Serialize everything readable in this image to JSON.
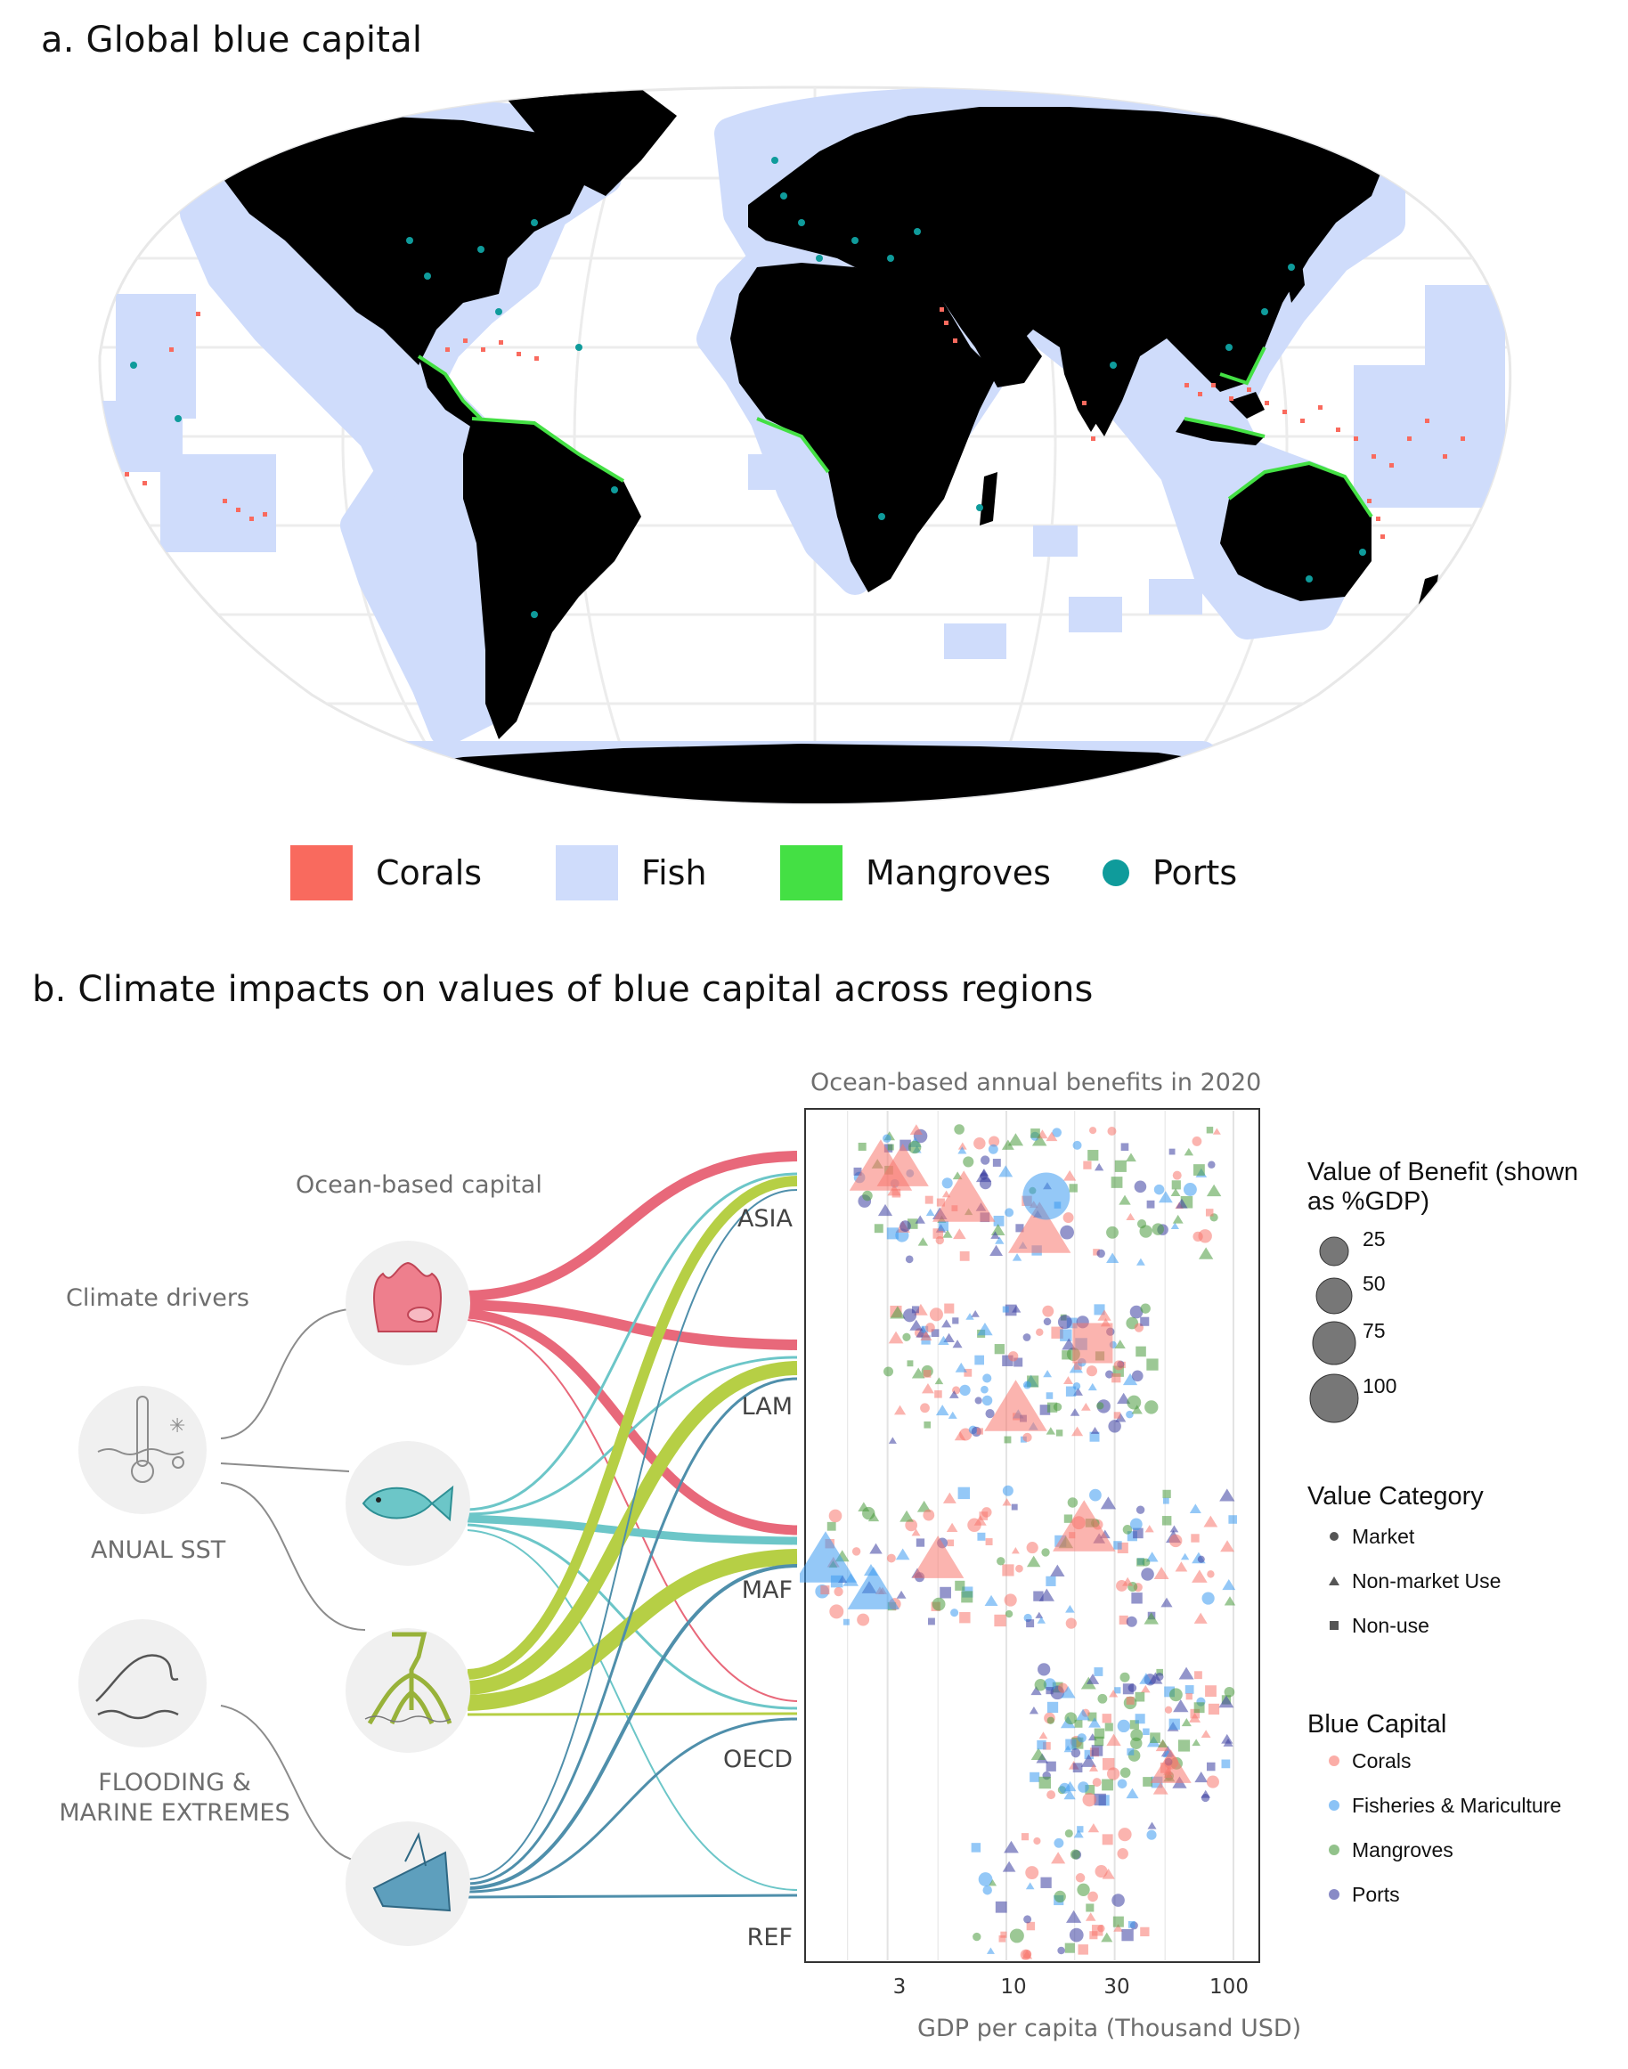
{
  "panel_a": {
    "title": "a. Global blue capital",
    "legend": [
      {
        "label": "Corals",
        "color": "#f96a5e",
        "shape": "square"
      },
      {
        "label": "Fish",
        "color": "#cfdcfb",
        "shape": "square"
      },
      {
        "label": "Mangroves",
        "color": "#44e044",
        "shape": "square"
      },
      {
        "label": "Ports",
        "color": "#0f9b9b",
        "shape": "circle"
      }
    ]
  },
  "panel_b": {
    "title": "b. Climate impacts on values of blue capital across regions",
    "climate_drivers_label": "Climate drivers",
    "ocean_capital_label": "Ocean-based capital",
    "drivers": [
      {
        "label": "ANUAL SST",
        "icon": "thermometer-icon"
      },
      {
        "label_lines": [
          "FLOODING &",
          "MARINE EXTREMES"
        ],
        "icon": "wave-icon"
      }
    ],
    "capitals": [
      {
        "icon": "coral-icon",
        "color": "#e8687a"
      },
      {
        "icon": "fish-icon",
        "color": "#6cc6c8"
      },
      {
        "icon": "mangrove-icon",
        "color": "#b6cf45"
      },
      {
        "icon": "port-icon",
        "color": "#4f8fab"
      }
    ],
    "regions": [
      "ASIA",
      "LAM",
      "MAF",
      "OECD",
      "REF"
    ],
    "colors": {
      "Corals": "#f8766d",
      "Fisheries & Mariculture": "#3d9bf0",
      "Mangroves": "#4a9a3e",
      "Ports": "#3b3ea0"
    }
  },
  "chart_data": {
    "type": "scatter",
    "title": "Ocean-based annual benefits in 2020",
    "xlabel": "GDP per capita (Thousand USD)",
    "x_scale": "log",
    "xlim": [
      1.3,
      130
    ],
    "x_ticks": [
      "3",
      "10",
      "30",
      "100"
    ],
    "y_categories": [
      "ASIA",
      "LAM",
      "MAF",
      "OECD",
      "REF"
    ],
    "legend": {
      "size_title": "Value of Benefit (shown as %GDP)",
      "size_levels": [
        "25",
        "50",
        "75",
        "100"
      ],
      "shape_title": "Value Category",
      "shapes": [
        "Market",
        "Non-market Use",
        "Non-use"
      ],
      "color_title": "Blue Capital",
      "colors": [
        "Corals",
        "Fisheries & Mariculture",
        "Mangroves",
        "Ports"
      ]
    },
    "region_gdp_ranges": {
      "ASIA": [
        2.2,
        85
      ],
      "LAM": [
        3,
        45
      ],
      "MAF": [
        1.5,
        100
      ],
      "OECD": [
        13,
        100
      ],
      "REF": [
        7,
        45
      ]
    },
    "large_points": [
      {
        "region": "ASIA",
        "x": 2.8,
        "size": 100,
        "capital": "Corals",
        "category": "Non-market Use"
      },
      {
        "region": "ASIA",
        "x": 6.5,
        "size": 100,
        "capital": "Corals",
        "category": "Non-market Use"
      },
      {
        "region": "ASIA",
        "x": 14,
        "size": 100,
        "capital": "Corals",
        "category": "Non-market Use"
      },
      {
        "region": "ASIA",
        "x": 3.5,
        "size": 75,
        "capital": "Corals",
        "category": "Non-market Use"
      },
      {
        "region": "ASIA",
        "x": 15,
        "size": 75,
        "capital": "Fisheries & Mariculture",
        "category": "Market"
      },
      {
        "region": "LAM",
        "x": 11,
        "size": 100,
        "capital": "Corals",
        "category": "Non-market Use"
      },
      {
        "region": "LAM",
        "x": 24,
        "size": 75,
        "capital": "Corals",
        "category": "Non-use"
      },
      {
        "region": "MAF",
        "x": 1.6,
        "size": 100,
        "capital": "Fisheries & Mariculture",
        "category": "Non-market Use"
      },
      {
        "region": "MAF",
        "x": 2.6,
        "size": 75,
        "capital": "Fisheries & Mariculture",
        "category": "Non-market Use"
      },
      {
        "region": "MAF",
        "x": 22,
        "size": 100,
        "capital": "Corals",
        "category": "Non-market Use"
      },
      {
        "region": "MAF",
        "x": 5,
        "size": 75,
        "capital": "Corals",
        "category": "Non-market Use"
      },
      {
        "region": "OECD",
        "x": 53,
        "size": 50,
        "capital": "Corals",
        "category": "Non-market Use"
      }
    ]
  }
}
